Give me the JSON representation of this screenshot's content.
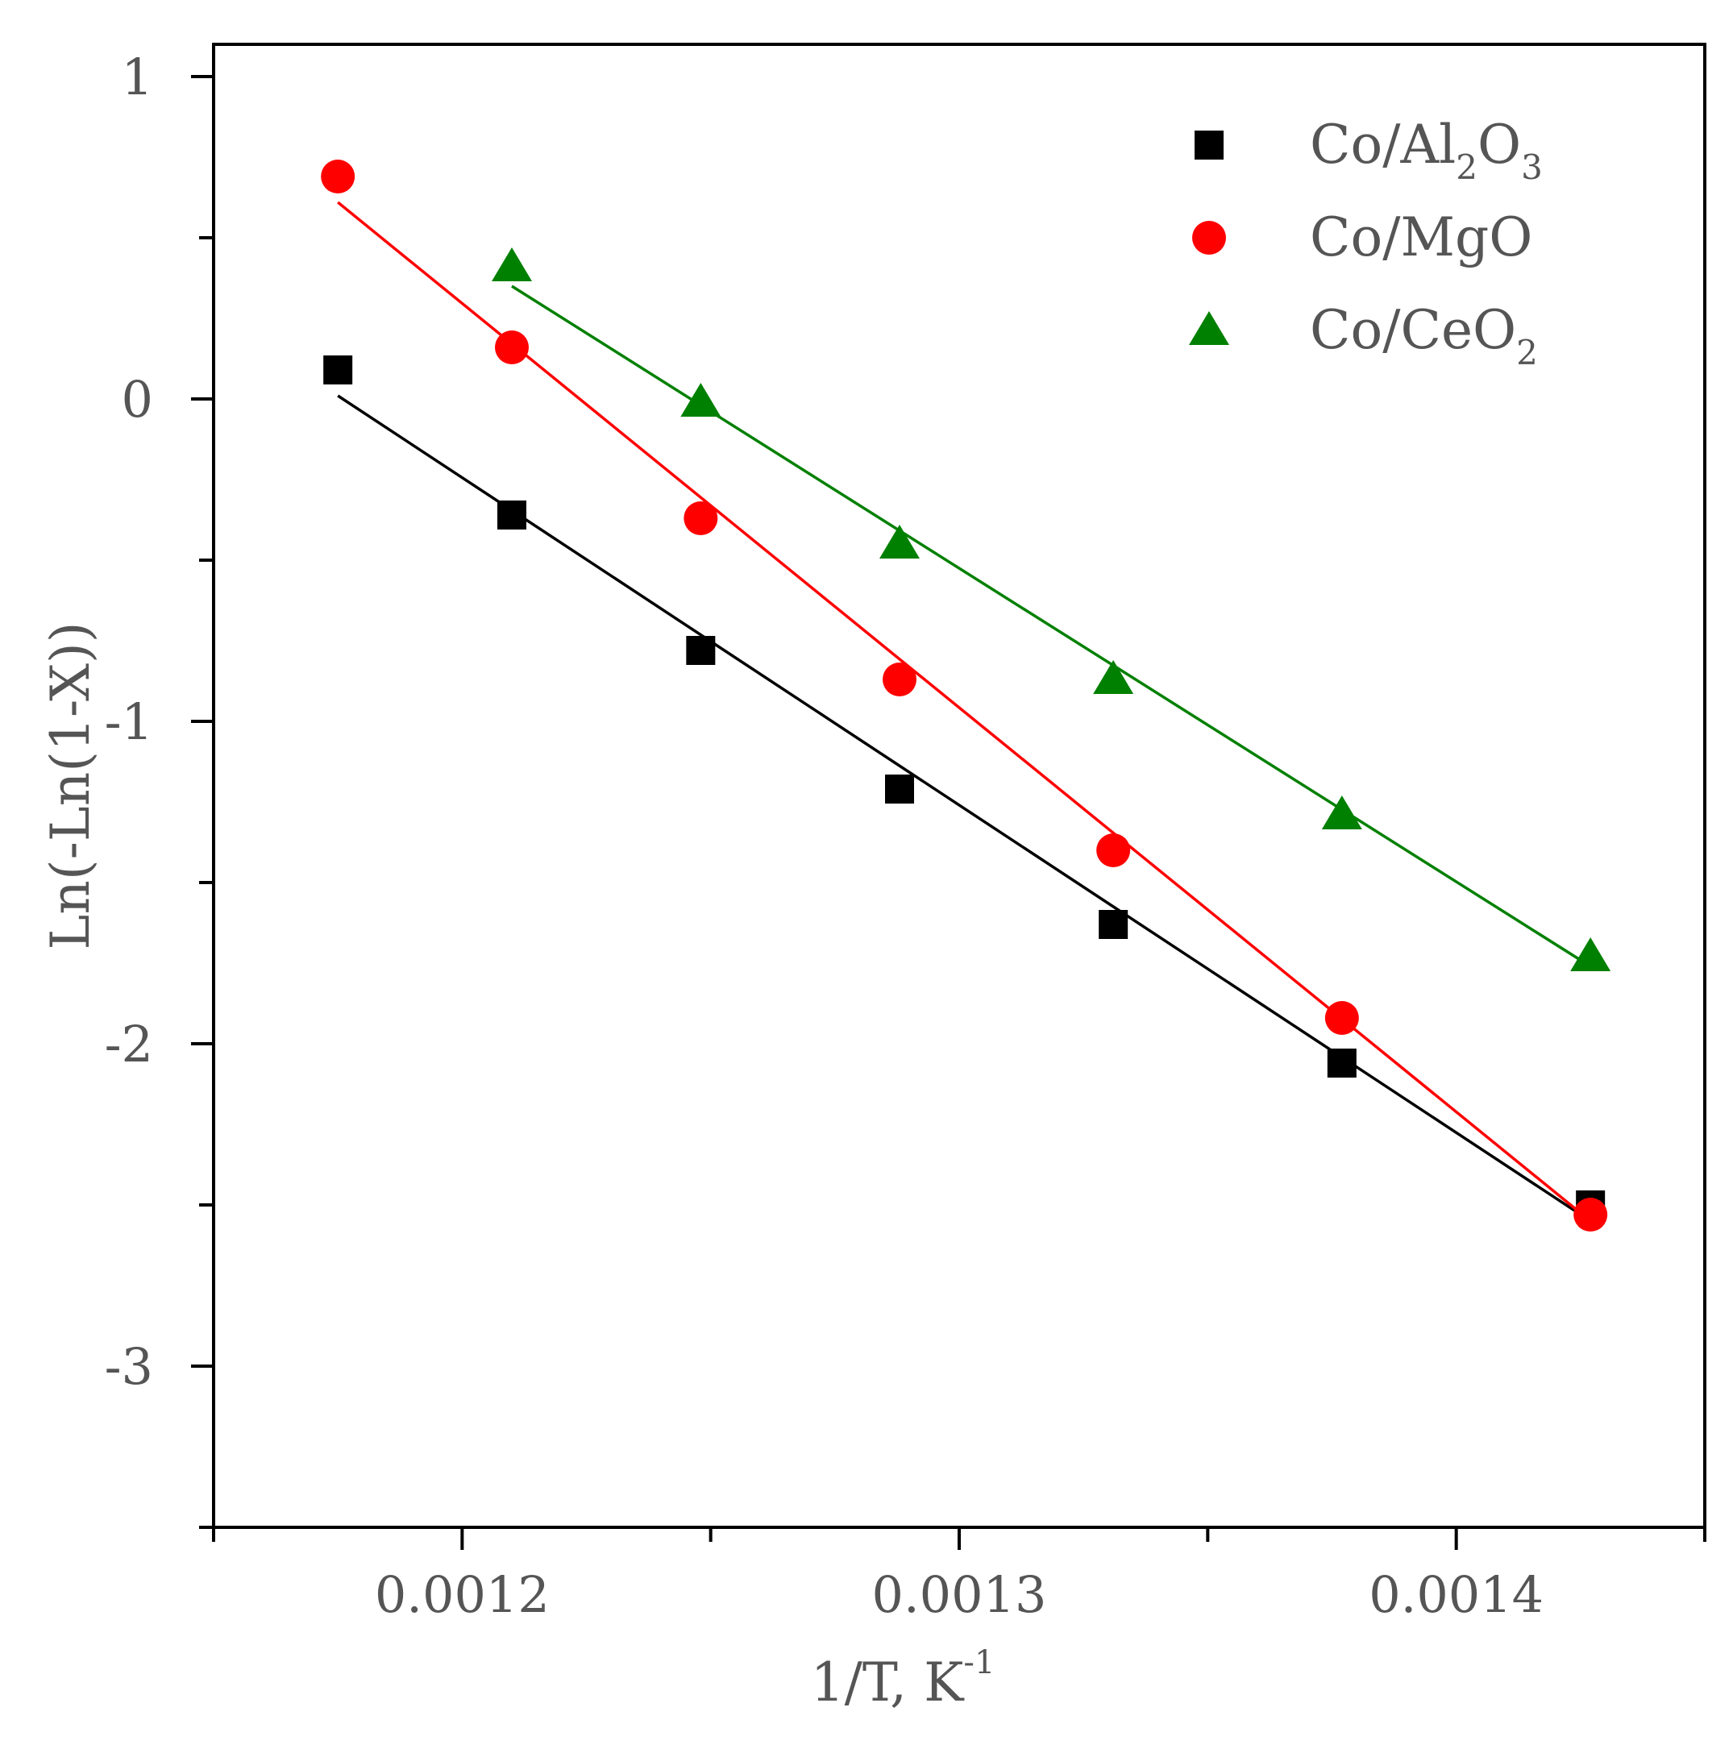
{
  "chart_data": {
    "type": "scatter",
    "xlabel": "1/T, K",
    "xlabel_sup": "-1",
    "ylabel": "Ln(-Ln(1-X))",
    "xlim": [
      0.00115,
      0.00145
    ],
    "ylim": [
      -3.5,
      1.1
    ],
    "x_ticks": [
      0.0012,
      0.0013,
      0.0014
    ],
    "x_tick_labels": [
      "0.0012",
      "0.0013",
      "0.0014"
    ],
    "x_minor_ticks": [
      0.00115,
      0.00125,
      0.00135,
      0.00145
    ],
    "y_ticks": [
      1,
      0,
      -1,
      -2,
      -3
    ],
    "y_tick_labels": [
      "1",
      "0",
      "-1",
      "-2",
      "-3"
    ],
    "y_minor_ticks": [
      0.5,
      -0.5,
      -1.5,
      -2.5,
      -3.5
    ],
    "legend": {
      "position": "top-right"
    },
    "series": [
      {
        "name": "Co/Al",
        "name_parts": [
          {
            "text": "Co/Al"
          },
          {
            "text": "2",
            "sub": true
          },
          {
            "text": "O"
          },
          {
            "text": "3",
            "sub": true
          }
        ],
        "marker": "square",
        "color": "#000000",
        "x": [
          0.001175,
          0.00121,
          0.001248,
          0.001288,
          0.001331,
          0.001377,
          0.001427
        ],
        "y": [
          0.09,
          -0.36,
          -0.78,
          -1.21,
          -1.63,
          -2.06,
          -2.5
        ],
        "fit": [
          [
            0.001175,
            0.01
          ],
          [
            0.001427,
            -2.55
          ]
        ]
      },
      {
        "name": "Co/MgO",
        "name_parts": [
          {
            "text": "Co/MgO"
          }
        ],
        "marker": "circle",
        "color": "#ff0000",
        "x": [
          0.001175,
          0.00121,
          0.001248,
          0.001288,
          0.001331,
          0.001377,
          0.001427
        ],
        "y": [
          0.69,
          0.16,
          -0.37,
          -0.87,
          -1.4,
          -1.92,
          -2.53
        ],
        "fit": [
          [
            0.001175,
            0.61
          ],
          [
            0.001427,
            -2.55
          ]
        ]
      },
      {
        "name": "Co/CeO",
        "name_parts": [
          {
            "text": "Co/CeO"
          },
          {
            "text": "2",
            "sub": true
          }
        ],
        "marker": "triangle",
        "color": "#008000",
        "x": [
          0.00121,
          0.001248,
          0.001288,
          0.001331,
          0.001377,
          0.001427
        ],
        "y": [
          0.41,
          -0.01,
          -0.45,
          -0.87,
          -1.29,
          -1.73
        ],
        "fit": [
          [
            0.00121,
            0.35
          ],
          [
            0.001427,
            -1.76
          ]
        ]
      }
    ]
  }
}
